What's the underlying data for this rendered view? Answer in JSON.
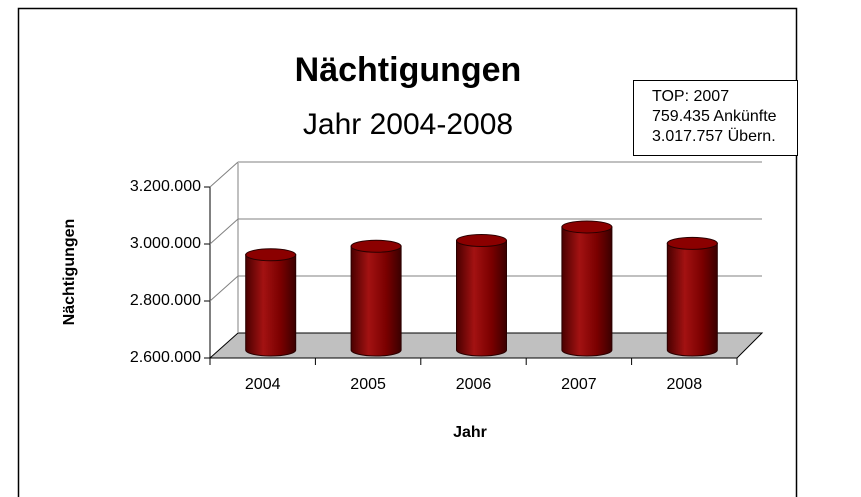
{
  "chart_data": {
    "type": "bar",
    "title": "Nächtigungen",
    "subtitle": "Jahr 2004-2008",
    "x_label": "Jahr",
    "y_label": "Nächtigungen",
    "categories": [
      "2004",
      "2005",
      "2006",
      "2007",
      "2008"
    ],
    "values": [
      2920000,
      2950000,
      2970000,
      3017757,
      2960000
    ],
    "color": "#8b0000",
    "ylim": [
      2600000,
      3200000
    ],
    "yticks": [
      {
        "value": 2600000,
        "label": "2.600.000"
      },
      {
        "value": 2800000,
        "label": "2.800.000"
      },
      {
        "value": 3000000,
        "label": "3.000.000"
      },
      {
        "value": 3200000,
        "label": "3.200.000"
      }
    ],
    "grid": true,
    "annotations": [
      "TOP: 2007",
      "759.435 Ankünfte",
      "3.017.757 Übern."
    ]
  }
}
